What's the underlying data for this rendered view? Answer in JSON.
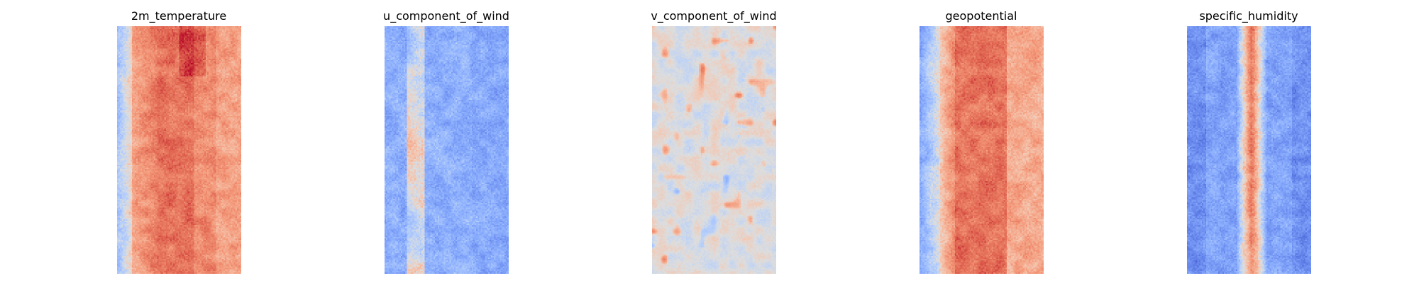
{
  "chart_data": [
    {
      "type": "heatmap",
      "title": "2m_temperature",
      "colormap": "coolwarm",
      "grid": false,
      "axes": "hidden",
      "field_description": "warm core band across middle columns with cooler edges; strongest values near the top of the core"
    },
    {
      "type": "heatmap",
      "title": "u_component_of_wind",
      "colormap": "coolwarm",
      "grid": false,
      "axes": "hidden",
      "field_description": "predominantly cool/blue field with scattered warm streaks near center-left"
    },
    {
      "type": "heatmap",
      "title": "v_component_of_wind",
      "colormap": "coolwarm",
      "grid": false,
      "axes": "hidden",
      "field_description": "near-neutral gray field with small scattered red and blue patches"
    },
    {
      "type": "heatmap",
      "title": "geopotential",
      "colormap": "coolwarm",
      "grid": false,
      "axes": "hidden",
      "field_description": "warm band across center with blue left edge and lighter warm right side"
    },
    {
      "type": "heatmap",
      "title": "specific_humidity",
      "colormap": "coolwarm",
      "grid": false,
      "axes": "hidden",
      "field_description": "blue field with a narrow warm vertical band near center"
    }
  ],
  "colors": {
    "background": "#ffffff",
    "cool_end": "#3b4cc0",
    "neutral": "#dddddd",
    "warm_end": "#b40426"
  }
}
